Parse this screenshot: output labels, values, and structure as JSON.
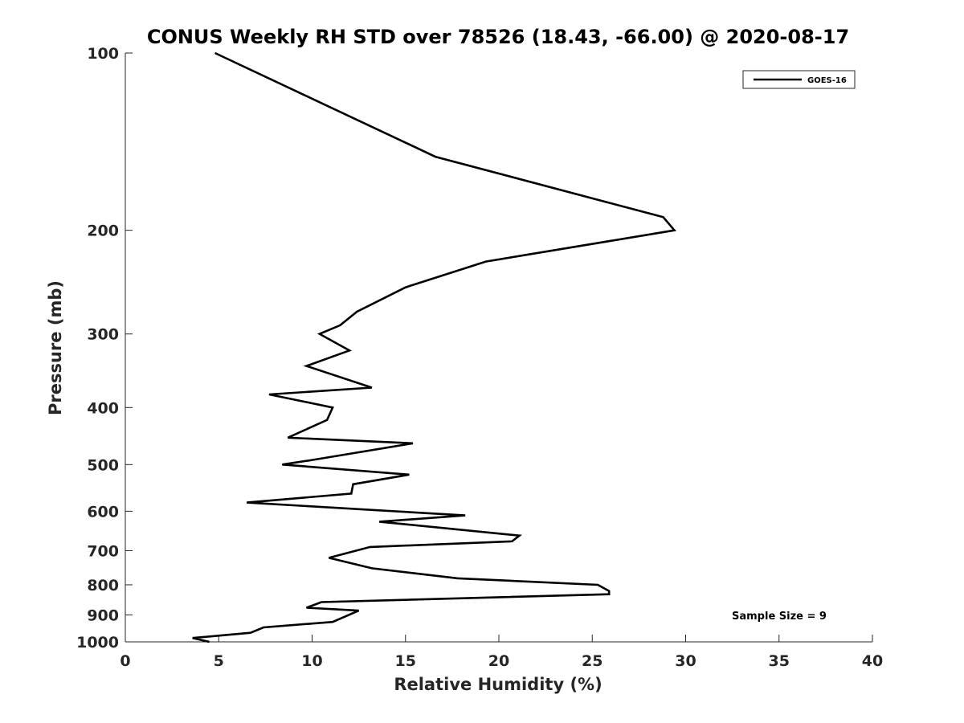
{
  "chart_data": {
    "type": "line",
    "title": "CONUS Weekly RH STD over 78526 (18.43, -66.00) @ 2020-08-17",
    "xlabel": "Relative Humidity (%)",
    "ylabel": "Pressure (mb)",
    "xlim": [
      0,
      40
    ],
    "ylim": [
      100,
      1000
    ],
    "y_scale": "log",
    "y_reversed": true,
    "x_ticks": [
      "0",
      "5",
      "10",
      "15",
      "20",
      "25",
      "30",
      "35",
      "40"
    ],
    "y_ticks": [
      "100",
      "200",
      "300",
      "400",
      "500",
      "600",
      "700",
      "800",
      "900",
      "1000"
    ],
    "grid": false,
    "legend_position": "top-right",
    "series": [
      {
        "name": "GOES-16",
        "color": "#000000",
        "x": [
          4.8,
          16.6,
          28.8,
          29.4,
          19.3,
          15.0,
          12.4,
          11.5,
          10.4,
          12.0,
          9.7,
          13.2,
          7.7,
          11.1,
          10.8,
          8.7,
          15.4,
          10.2,
          8.4,
          15.2,
          12.2,
          12.1,
          6.5,
          18.2,
          13.6,
          21.1,
          20.7,
          13.1,
          10.9,
          13.2,
          17.8,
          25.3,
          25.9,
          25.9,
          10.5,
          9.7,
          12.5,
          11.1,
          7.4,
          6.7,
          3.6,
          4.5
        ],
        "y": [
          100,
          150,
          190,
          200,
          226,
          250,
          275,
          290,
          300,
          320,
          340,
          370,
          380,
          400,
          420,
          450,
          460,
          490,
          500,
          520,
          540,
          560,
          580,
          610,
          625,
          660,
          675,
          690,
          720,
          750,
          780,
          800,
          820,
          830,
          856,
          875,
          885,
          925,
          945,
          965,
          985,
          1000
        ]
      }
    ],
    "annotations": [
      "Sample Size = 9"
    ]
  }
}
